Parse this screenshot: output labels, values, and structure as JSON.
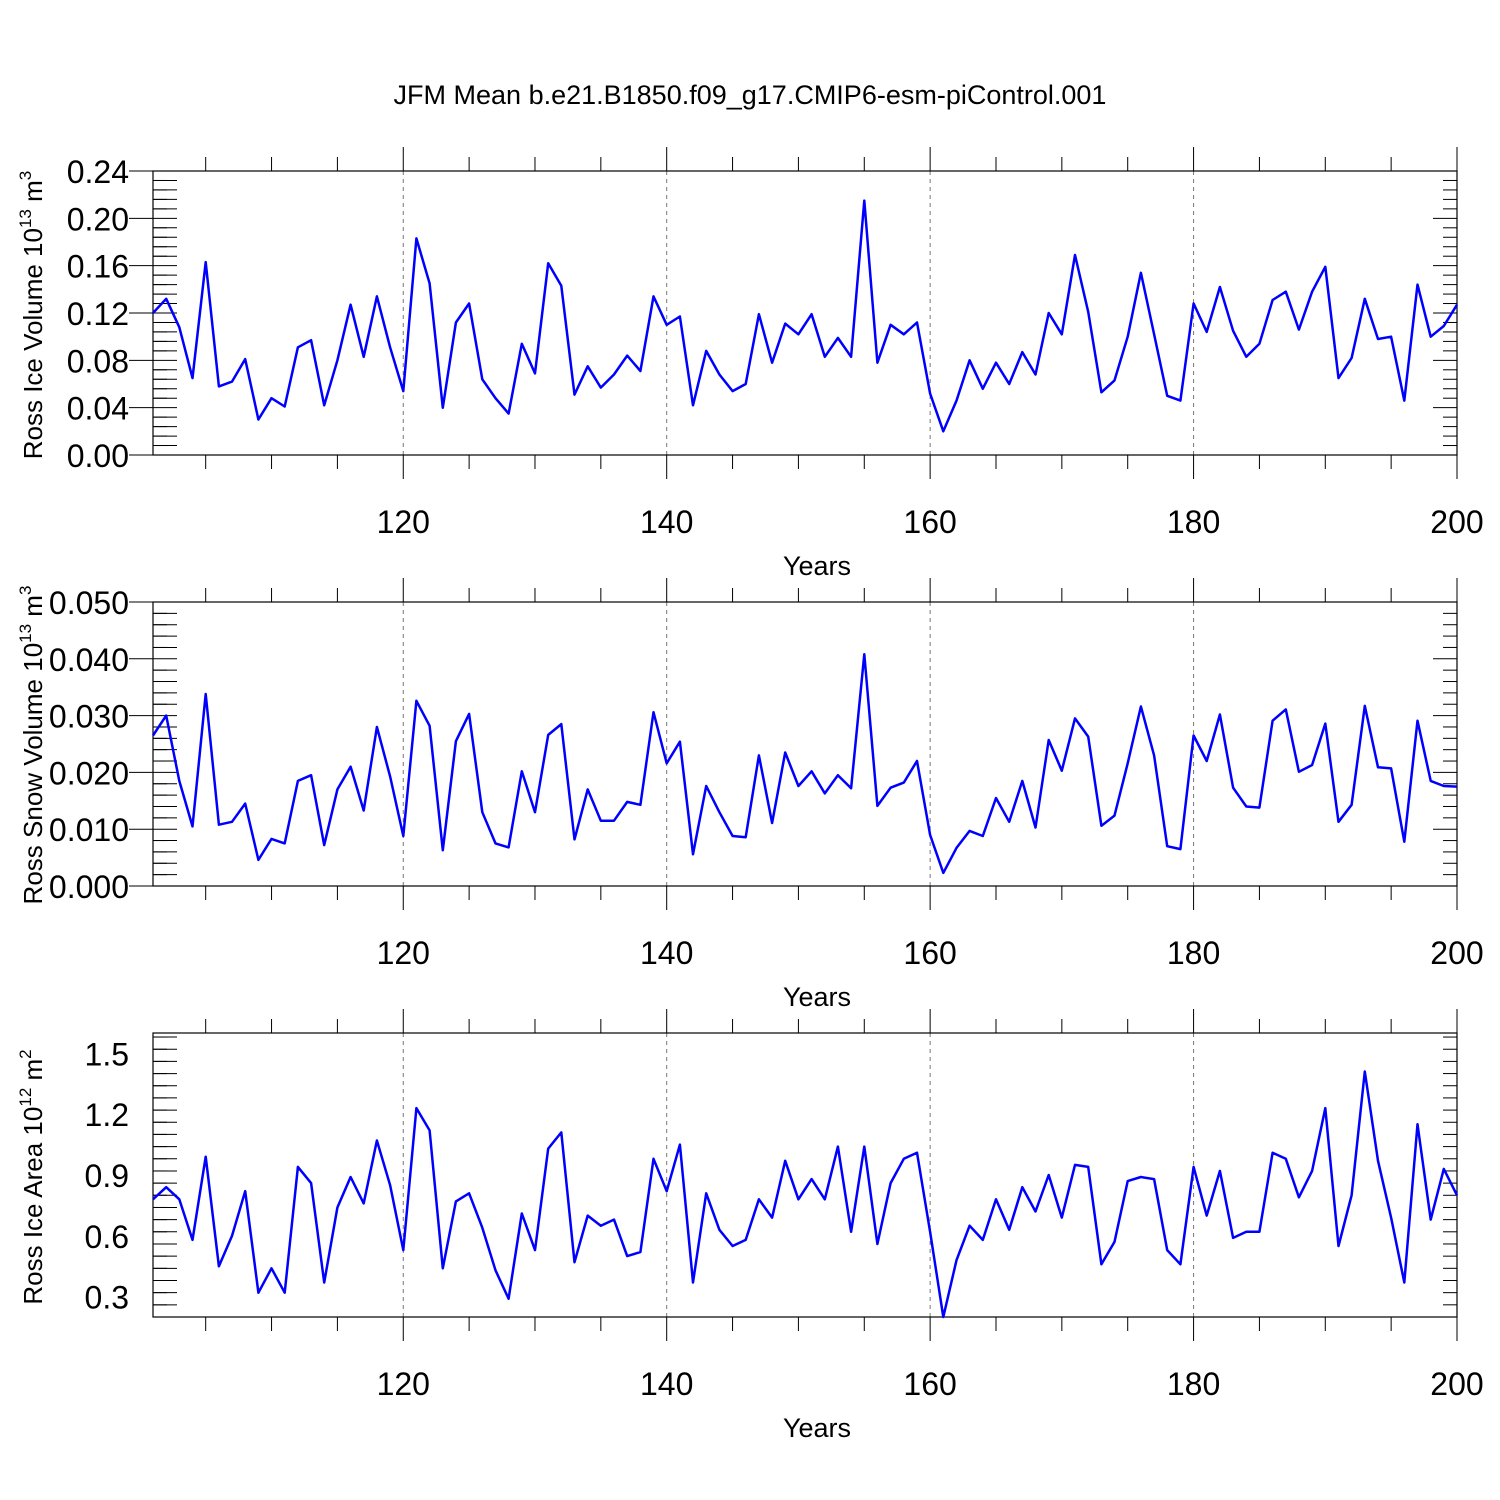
{
  "title": "JFM Mean b.e21.B1850.f09_g17.CMIP6-esm-piControl.001",
  "line_color": "#0000ff",
  "chart_data": [
    {
      "type": "line",
      "ylabel_main": "Ross Ice Volume 10",
      "ylabel_exp": "13",
      "ylabel_unit": " m",
      "ylabel_unit_exp": "3",
      "xlabel": "Years",
      "xlim": [
        101,
        200
      ],
      "xticks": [
        "120",
        "140",
        "160",
        "180",
        "200"
      ],
      "ylim": [
        0,
        0.24
      ],
      "yticks": [
        "0.00",
        "0.04",
        "0.08",
        "0.12",
        "0.16",
        "0.20",
        "0.24"
      ],
      "x_start": 101,
      "values": [
        0.12,
        0.132,
        0.108,
        0.065,
        0.163,
        0.058,
        0.062,
        0.081,
        0.03,
        0.048,
        0.041,
        0.091,
        0.097,
        0.042,
        0.08,
        0.127,
        0.083,
        0.134,
        0.091,
        0.054,
        0.183,
        0.145,
        0.04,
        0.112,
        0.128,
        0.064,
        0.048,
        0.035,
        0.094,
        0.069,
        0.162,
        0.143,
        0.051,
        0.075,
        0.057,
        0.068,
        0.084,
        0.071,
        0.134,
        0.11,
        0.117,
        0.042,
        0.088,
        0.068,
        0.054,
        0.06,
        0.119,
        0.078,
        0.111,
        0.102,
        0.119,
        0.083,
        0.099,
        0.083,
        0.215,
        0.078,
        0.11,
        0.102,
        0.112,
        0.052,
        0.02,
        0.046,
        0.08,
        0.056,
        0.078,
        0.06,
        0.087,
        0.068,
        0.12,
        0.102,
        0.169,
        0.121,
        0.053,
        0.063,
        0.1,
        0.154,
        0.102,
        0.05,
        0.046,
        0.128,
        0.104,
        0.142,
        0.105,
        0.083,
        0.094,
        0.131,
        0.138,
        0.106,
        0.138,
        0.159,
        0.065,
        0.082,
        0.132,
        0.098,
        0.1,
        0.046,
        0.144,
        0.1,
        0.109,
        0.127
      ]
    },
    {
      "type": "line",
      "ylabel_main": "Ross Snow Volume 10",
      "ylabel_exp": "13",
      "ylabel_unit": " m",
      "ylabel_unit_exp": "3",
      "xlabel": "Years",
      "xlim": [
        101,
        200
      ],
      "xticks": [
        "120",
        "140",
        "160",
        "180",
        "200"
      ],
      "ylim": [
        0,
        0.05
      ],
      "yticks": [
        "0.000",
        "0.010",
        "0.020",
        "0.030",
        "0.040",
        "0.050"
      ],
      "x_start": 101,
      "values": [
        0.0265,
        0.03,
        0.0185,
        0.0105,
        0.0338,
        0.0108,
        0.0113,
        0.0145,
        0.0046,
        0.0083,
        0.0075,
        0.0185,
        0.0195,
        0.0072,
        0.017,
        0.021,
        0.0133,
        0.028,
        0.0193,
        0.0088,
        0.0326,
        0.0282,
        0.0063,
        0.0255,
        0.0303,
        0.013,
        0.0075,
        0.0068,
        0.0202,
        0.013,
        0.0266,
        0.0285,
        0.0082,
        0.017,
        0.0115,
        0.0115,
        0.0148,
        0.0143,
        0.0306,
        0.0216,
        0.0254,
        0.0056,
        0.0176,
        0.013,
        0.0088,
        0.0086,
        0.023,
        0.0111,
        0.0235,
        0.0176,
        0.0202,
        0.0163,
        0.0195,
        0.0172,
        0.0408,
        0.0141,
        0.0173,
        0.0182,
        0.022,
        0.009,
        0.0023,
        0.0067,
        0.0097,
        0.0088,
        0.0155,
        0.0113,
        0.0185,
        0.0103,
        0.0257,
        0.0203,
        0.0295,
        0.0263,
        0.0106,
        0.0124,
        0.0216,
        0.0316,
        0.023,
        0.007,
        0.0065,
        0.0265,
        0.022,
        0.0302,
        0.0173,
        0.014,
        0.0138,
        0.0291,
        0.0311,
        0.0201,
        0.0213,
        0.0286,
        0.0113,
        0.0143,
        0.0317,
        0.0209,
        0.0207,
        0.0078,
        0.0291,
        0.0185,
        0.0176,
        0.0175
      ]
    },
    {
      "type": "line",
      "ylabel_main": "Ross Ice Area 10",
      "ylabel_exp": "12",
      "ylabel_unit": " m",
      "ylabel_unit_exp": "2",
      "xlabel": "Years",
      "xlim": [
        101,
        200
      ],
      "xticks": [
        "120",
        "140",
        "160",
        "180",
        "200"
      ],
      "ylim": [
        0.2,
        1.6
      ],
      "yticks": [
        "0.3",
        "0.6",
        "0.9",
        "1.2",
        "1.5"
      ],
      "ytick_values": [
        0.3,
        0.6,
        0.9,
        1.2,
        1.5
      ],
      "x_start": 101,
      "values": [
        0.78,
        0.84,
        0.78,
        0.58,
        0.99,
        0.45,
        0.6,
        0.82,
        0.32,
        0.44,
        0.32,
        0.94,
        0.86,
        0.37,
        0.74,
        0.89,
        0.76,
        1.07,
        0.85,
        0.53,
        1.23,
        1.12,
        0.44,
        0.77,
        0.81,
        0.64,
        0.43,
        0.29,
        0.71,
        0.53,
        1.03,
        1.11,
        0.47,
        0.7,
        0.65,
        0.68,
        0.5,
        0.52,
        0.98,
        0.82,
        1.05,
        0.37,
        0.81,
        0.63,
        0.55,
        0.58,
        0.78,
        0.69,
        0.97,
        0.78,
        0.88,
        0.78,
        1.04,
        0.62,
        1.04,
        0.56,
        0.86,
        0.98,
        1.01,
        0.62,
        0.2,
        0.48,
        0.65,
        0.58,
        0.78,
        0.63,
        0.84,
        0.72,
        0.9,
        0.69,
        0.95,
        0.94,
        0.46,
        0.57,
        0.87,
        0.89,
        0.88,
        0.53,
        0.46,
        0.94,
        0.7,
        0.92,
        0.59,
        0.62,
        0.62,
        1.01,
        0.98,
        0.79,
        0.92,
        1.23,
        0.55,
        0.8,
        1.41,
        0.97,
        0.69,
        0.37,
        1.15,
        0.68,
        0.93,
        0.8
      ]
    }
  ]
}
